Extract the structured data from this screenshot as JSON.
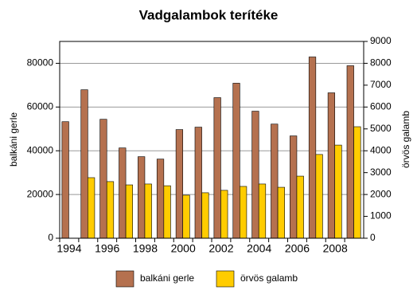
{
  "chart_data": {
    "type": "bar",
    "title": "Vadgalambok terítéke",
    "y_label": "balkáni gerle",
    "y2_label": "örvös galamb",
    "categories": [
      "1994",
      null,
      "1996",
      null,
      "1998",
      null,
      "2000",
      null,
      "2002",
      null,
      "2004",
      null,
      "2006",
      null,
      "2008",
      null
    ],
    "series": [
      {
        "name": "balkáni gerle",
        "color": "#b5714f",
        "values": [
          53300,
          67900,
          54400,
          41300,
          37300,
          36200,
          49700,
          50800,
          64300,
          70900,
          58100,
          52200,
          46800,
          82900,
          66500,
          78900
        ]
      },
      {
        "name": "örvös galamb",
        "color": "#ffcc00",
        "axis": "y2",
        "values": [
          null,
          2770,
          2590,
          2440,
          2480,
          2400,
          1970,
          2080,
          2190,
          2370,
          2480,
          2330,
          2840,
          3830,
          4260,
          5100
        ]
      }
    ],
    "ylim": [
      0,
      90000
    ],
    "yticks": [
      0,
      20000,
      40000,
      60000,
      80000
    ],
    "y2lim": [
      0,
      9000
    ],
    "y2ticks": [
      0,
      1000,
      2000,
      3000,
      4000,
      5000,
      6000,
      7000,
      8000,
      9000
    ],
    "grid": true,
    "legend": "bottom"
  }
}
